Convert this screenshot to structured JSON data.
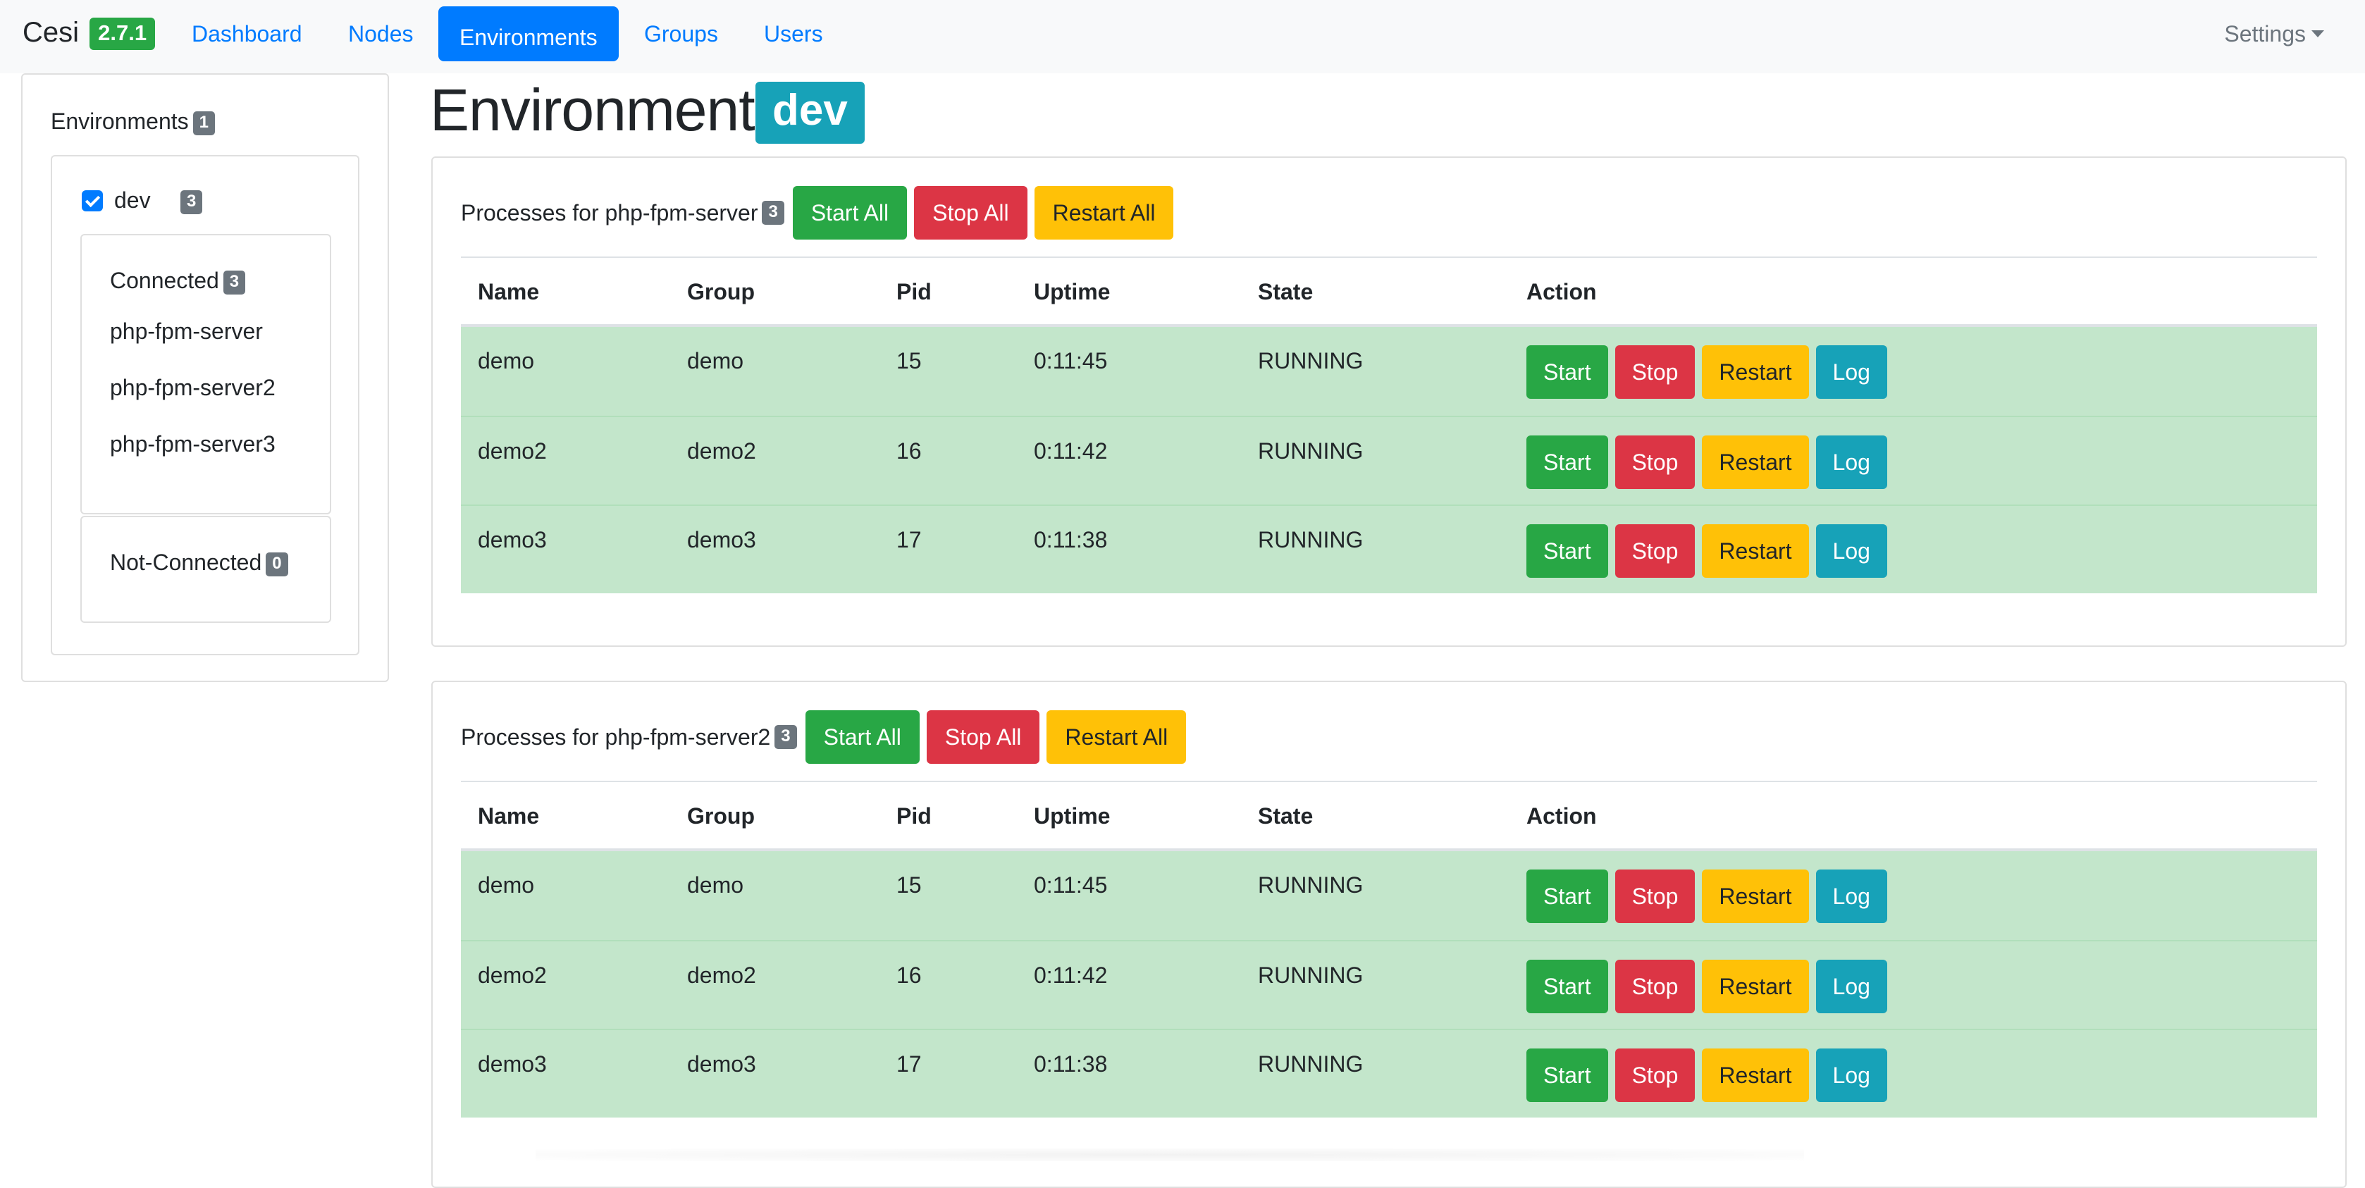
{
  "navbar": {
    "brand": "Cesi",
    "version": "2.7.1",
    "links": [
      "Dashboard",
      "Nodes",
      "Environments",
      "Groups",
      "Users"
    ],
    "active": "Environments",
    "settings": "Settings"
  },
  "sidebar": {
    "title": "Environments",
    "env_count": "1",
    "environment": {
      "name": "dev",
      "count": "3",
      "checked": true
    },
    "connected": {
      "title": "Connected",
      "count": "3",
      "nodes": [
        "php-fpm-server",
        "php-fpm-server2",
        "php-fpm-server3"
      ]
    },
    "not_connected": {
      "title": "Not-Connected",
      "count": "0"
    }
  },
  "page": {
    "title": "Environment:",
    "env_badge": "dev"
  },
  "panels": [
    {
      "title": "Processes for php-fpm-server",
      "count": "3",
      "buttons": {
        "start_all": "Start All",
        "stop_all": "Stop All",
        "restart_all": "Restart All"
      },
      "columns": [
        "Name",
        "Group",
        "Pid",
        "Uptime",
        "State",
        "Action"
      ],
      "rows": [
        {
          "name": "demo",
          "group": "demo",
          "pid": "15",
          "uptime": "0:11:45",
          "state": "RUNNING"
        },
        {
          "name": "demo2",
          "group": "demo2",
          "pid": "16",
          "uptime": "0:11:42",
          "state": "RUNNING"
        },
        {
          "name": "demo3",
          "group": "demo3",
          "pid": "17",
          "uptime": "0:11:38",
          "state": "RUNNING"
        }
      ]
    },
    {
      "title": "Processes for php-fpm-server2",
      "count": "3",
      "buttons": {
        "start_all": "Start All",
        "stop_all": "Stop All",
        "restart_all": "Restart All"
      },
      "columns": [
        "Name",
        "Group",
        "Pid",
        "Uptime",
        "State",
        "Action"
      ],
      "rows": [
        {
          "name": "demo",
          "group": "demo",
          "pid": "15",
          "uptime": "0:11:45",
          "state": "RUNNING"
        },
        {
          "name": "demo2",
          "group": "demo2",
          "pid": "16",
          "uptime": "0:11:42",
          "state": "RUNNING"
        },
        {
          "name": "demo3",
          "group": "demo3",
          "pid": "17",
          "uptime": "0:11:38",
          "state": "RUNNING"
        }
      ]
    }
  ],
  "row_actions": {
    "start": "Start",
    "stop": "Stop",
    "restart": "Restart",
    "log": "Log"
  },
  "colors": {
    "primary": "#007bff",
    "success": "#28a745",
    "danger": "#dc3545",
    "warning": "#ffc107",
    "info": "#17a2b8",
    "secondary": "#6c757d",
    "row_success": "#c3e6cb"
  }
}
